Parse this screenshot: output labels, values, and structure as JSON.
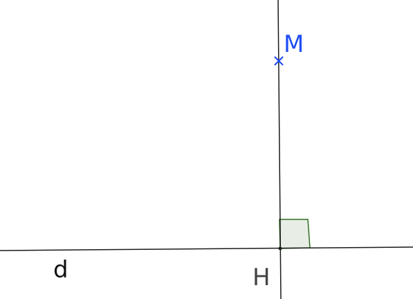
{
  "diagram": {
    "line_label": "d",
    "point_label": "M",
    "foot_label": "H",
    "colors": {
      "line": "#1a1a1a",
      "point": "#1f4ef5",
      "right_angle_stroke": "#2f6e1f",
      "right_angle_fill": "#e8eee6",
      "foot_label": "#444444",
      "line_label": "#111111"
    }
  }
}
